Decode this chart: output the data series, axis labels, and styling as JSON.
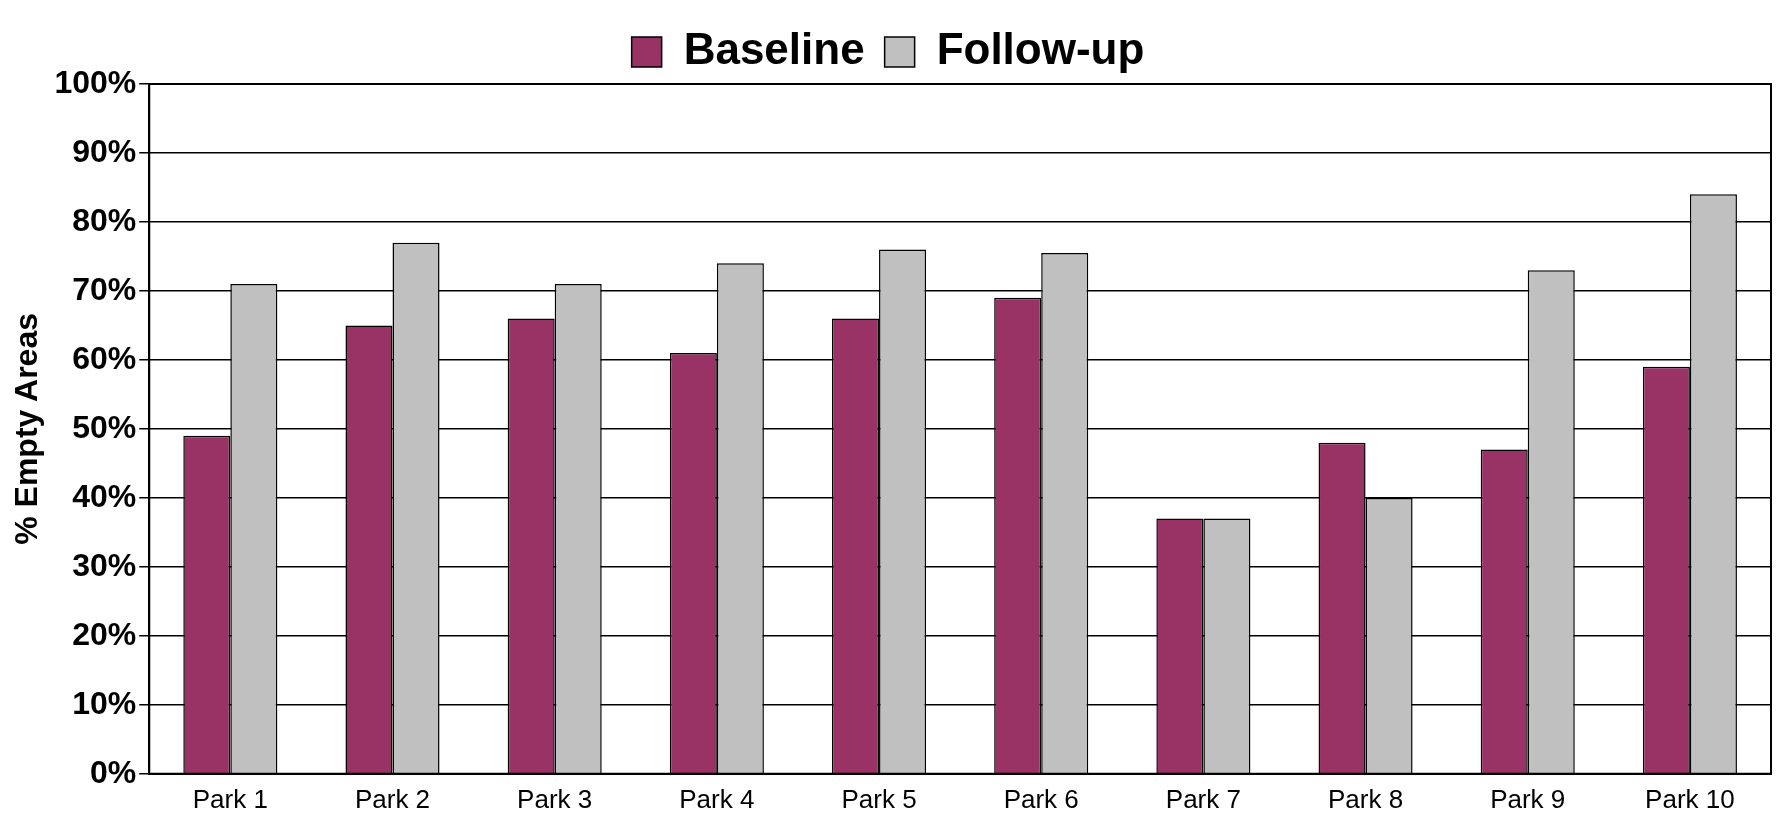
{
  "chart_data": {
    "type": "bar",
    "ylabel": "% Empty Areas",
    "categories": [
      "Park 1",
      "Park 2",
      "Park 3",
      "Park 4",
      "Park 5",
      "Park 6",
      "Park 7",
      "Park 8",
      "Park 9",
      "Park 10"
    ],
    "series": [
      {
        "name": "Baseline",
        "color": "#993366",
        "values": [
          49,
          65,
          66,
          61,
          66,
          69,
          37,
          48,
          47,
          59
        ]
      },
      {
        "name": "Follow-up",
        "color": "#c0c0c0",
        "values": [
          71,
          77,
          71,
          74,
          76,
          75.5,
          37,
          40,
          73,
          84
        ]
      }
    ],
    "ylim": [
      0,
      100
    ],
    "yticks": [
      {
        "value": 0,
        "label": "0%"
      },
      {
        "value": 10,
        "label": "10%"
      },
      {
        "value": 20,
        "label": "20%"
      },
      {
        "value": 30,
        "label": "30%"
      },
      {
        "value": 40,
        "label": "40%"
      },
      {
        "value": 50,
        "label": "50%"
      },
      {
        "value": 60,
        "label": "60%"
      },
      {
        "value": 70,
        "label": "70%"
      },
      {
        "value": 80,
        "label": "80%"
      },
      {
        "value": 90,
        "label": "90%"
      },
      {
        "value": 100,
        "label": "100%"
      }
    ],
    "grid": "y",
    "legend": "top"
  }
}
